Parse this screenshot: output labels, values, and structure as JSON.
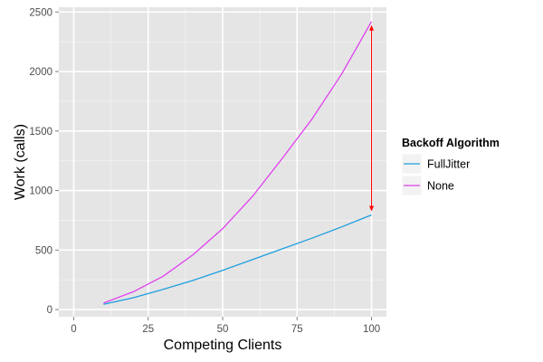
{
  "chart_data": {
    "type": "line",
    "xlabel": "Competing Clients",
    "ylabel": "Work (calls)",
    "xlim": [
      -5,
      105
    ],
    "ylim": [
      -60,
      2540
    ],
    "x_ticks": [
      0,
      25,
      50,
      75,
      100
    ],
    "x_tick_labels": [
      "0",
      "25",
      "50",
      "75",
      "100"
    ],
    "y_ticks": [
      0,
      500,
      1000,
      1500,
      2000,
      2500
    ],
    "y_tick_labels": [
      "0",
      "500",
      "1000",
      "1500",
      "2000",
      "2500"
    ],
    "grid": true,
    "background": "#e5e5e5",
    "legend": {
      "title": "Backoff Algorithm",
      "position": "right"
    },
    "series": [
      {
        "name": "FullJitter",
        "color": "#1e9fe0",
        "x": [
          10,
          20,
          30,
          40,
          50,
          60,
          70,
          80,
          90,
          100
        ],
        "y": [
          45,
          100,
          170,
          245,
          330,
          420,
          510,
          600,
          695,
          795
        ]
      },
      {
        "name": "None",
        "color": "#e040f0",
        "x": [
          10,
          20,
          30,
          40,
          50,
          60,
          70,
          80,
          90,
          100
        ],
        "y": [
          55,
          150,
          280,
          460,
          680,
          950,
          1270,
          1600,
          1980,
          2420
        ]
      }
    ],
    "annotation": {
      "type": "double-arrow",
      "x": 100,
      "y_from": 795,
      "y_to": 2420,
      "color": "#ff0000"
    }
  }
}
